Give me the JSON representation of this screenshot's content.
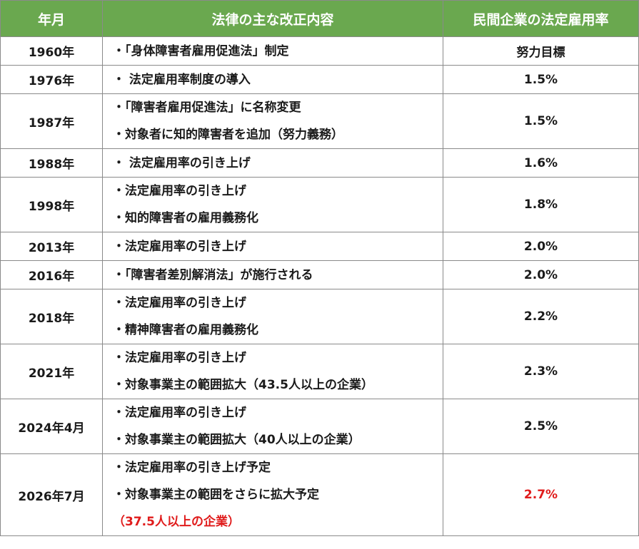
{
  "headers": [
    "年月",
    "法律の主な改正内容",
    "民間企業の法定雇用率"
  ],
  "rows": [
    {
      "year": "1960年",
      "items": [
        "・「身体障害者雇用促進法」制定"
      ],
      "rate": "努力目標"
    },
    {
      "year": "1976年",
      "items": [
        "・ 法定雇用率制度の導入"
      ],
      "rate": "1.5%"
    },
    {
      "year": "1987年",
      "items": [
        "・「障害者雇用促進法」に名称変更",
        "・対象者に知的障害者を追加（努力義務）"
      ],
      "rate": "1.5%"
    },
    {
      "year": "1988年",
      "items": [
        "・ 法定雇用率の引き上げ"
      ],
      "rate": "1.6%"
    },
    {
      "year": "1998年",
      "items": [
        "・法定雇用率の引き上げ",
        "・知的障害者の雇用義務化"
      ],
      "rate": "1.8%"
    },
    {
      "year": "2013年",
      "items": [
        "・法定雇用率の引き上げ"
      ],
      "rate": "2.0%"
    },
    {
      "year": "2016年",
      "items": [
        "・「障害者差別解消法」が施行される"
      ],
      "rate": "2.0%"
    },
    {
      "year": "2018年",
      "items": [
        "・法定雇用率の引き上げ",
        "・精神障害者の雇用義務化"
      ],
      "rate": "2.2%"
    },
    {
      "year": "2021年",
      "items": [
        "・法定雇用率の引き上げ",
        "・対象事業主の範囲拡大（43.5人以上の企業）"
      ],
      "rate": "2.3%"
    },
    {
      "year": "2024年4月",
      "items": [
        "・法定雇用率の引き上げ",
        "・対象事業主の範囲拡大（40人以上の企業）"
      ],
      "rate": "2.5%"
    },
    {
      "year": "2026年7月",
      "items": [
        "・法定雇用率の引き上げ予定",
        "・対象事業主の範囲をさらに拡大予定",
        "（37.5人以上の企業）"
      ],
      "rate": "2.7%",
      "highlight_items": [
        2
      ],
      "rate_highlight": true
    }
  ],
  "colors": {
    "header_bg": "#6aa84f",
    "header_text": "#ffffff",
    "highlight": "#e01b1b",
    "border": "#8a8a8a"
  }
}
